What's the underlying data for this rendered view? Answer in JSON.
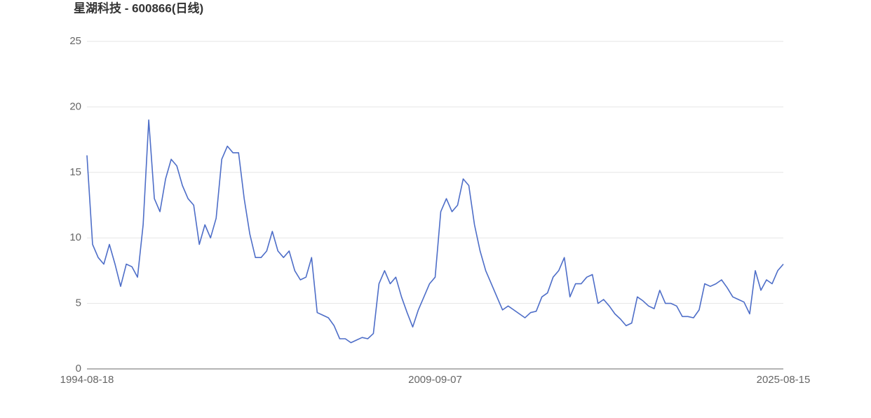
{
  "chart_data": {
    "type": "line",
    "title": "星湖科技 - 600866(日线)",
    "categories": [
      "1994-08-18",
      null,
      null,
      null,
      null,
      null,
      null,
      null,
      null,
      null,
      null,
      null,
      null,
      null,
      null,
      null,
      null,
      null,
      null,
      null,
      null,
      null,
      null,
      null,
      null,
      null,
      null,
      null,
      null,
      null,
      null,
      null,
      null,
      null,
      null,
      null,
      null,
      null,
      null,
      null,
      null,
      null,
      null,
      null,
      null,
      null,
      null,
      null,
      null,
      null,
      null,
      null,
      null,
      null,
      null,
      null,
      null,
      null,
      null,
      null,
      null,
      null,
      "2009-09-07",
      null,
      null,
      null,
      null,
      null,
      null,
      null,
      null,
      null,
      null,
      null,
      null,
      null,
      null,
      null,
      null,
      null,
      null,
      null,
      null,
      null,
      null,
      null,
      null,
      null,
      null,
      null,
      null,
      null,
      null,
      null,
      null,
      null,
      null,
      null,
      null,
      null,
      null,
      null,
      null,
      null,
      null,
      null,
      null,
      null,
      null,
      null,
      null,
      null,
      null,
      null,
      null,
      null,
      null,
      null,
      null,
      null,
      null,
      null,
      null,
      null,
      "2025-08-15"
    ],
    "series": [
      {
        "name": "600866",
        "color": "#4e6ec8",
        "values": [
          16.3,
          9.5,
          8.5,
          8,
          9.5,
          8,
          6.3,
          8,
          7.8,
          7,
          11,
          19,
          13,
          12,
          14.5,
          16,
          15.5,
          14,
          13,
          12.5,
          9.5,
          11,
          10,
          11.5,
          16,
          17,
          16.5,
          16.5,
          13,
          10.3,
          8.5,
          8.5,
          9,
          10.5,
          9,
          8.5,
          9,
          7.5,
          6.8,
          7,
          8.5,
          4.3,
          4.1,
          3.9,
          3.3,
          2.3,
          2.3,
          2.0,
          2.2,
          2.4,
          2.3,
          2.7,
          6.5,
          7.5,
          6.5,
          7,
          5.5,
          4.3,
          3.2,
          4.5,
          5.5,
          6.5,
          7,
          12,
          13,
          12,
          12.5,
          14.5,
          14,
          11,
          9,
          7.5,
          6.5,
          5.5,
          4.5,
          4.8,
          4.5,
          4.2,
          3.9,
          4.3,
          4.4,
          5.5,
          5.8,
          7,
          7.5,
          8.5,
          5.5,
          6.5,
          6.5,
          7,
          7.2,
          5,
          5.3,
          4.8,
          4.2,
          3.8,
          3.3,
          3.5,
          5.5,
          5.2,
          4.8,
          4.6,
          6,
          5,
          5,
          4.8,
          4,
          4,
          3.9,
          4.5,
          6.5,
          6.3,
          6.5,
          6.8,
          6.2,
          5.5,
          5.3,
          5.1,
          4.2,
          7.5,
          6,
          6.8,
          6.5,
          7.5,
          8
        ]
      }
    ],
    "ylim": [
      0,
      25
    ],
    "yticks": [
      0,
      5,
      10,
      15,
      20,
      25
    ],
    "grid": true
  }
}
